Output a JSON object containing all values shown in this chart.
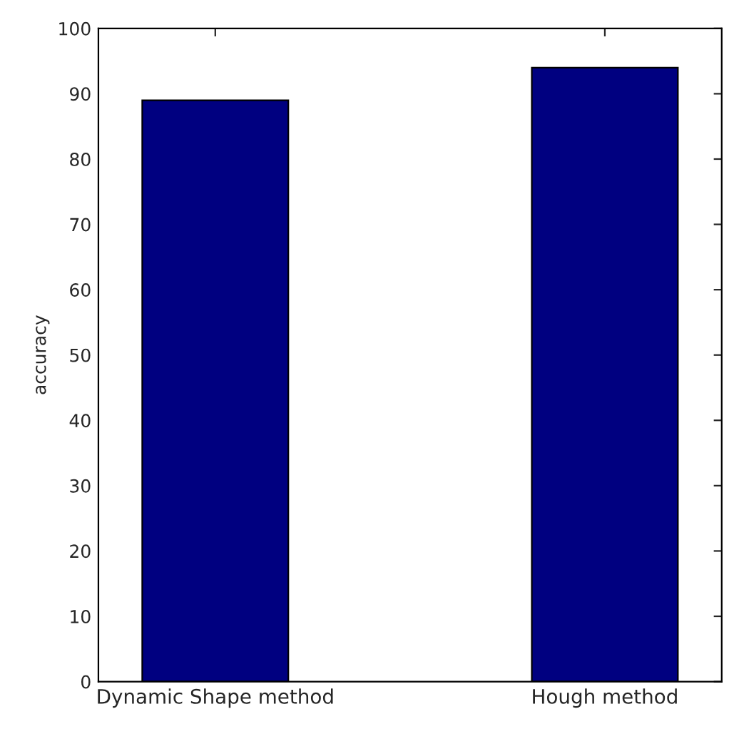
{
  "chart_data": {
    "type": "bar",
    "ylabel": "accuracy",
    "categories": [
      "Dynamic Shape method",
      "Hough method"
    ],
    "values": [
      89,
      94
    ],
    "color": "#000080",
    "ylim": [
      0,
      100
    ],
    "yticks": [
      0,
      10,
      20,
      30,
      40,
      50,
      60,
      70,
      80,
      90,
      100
    ],
    "grid": false
  }
}
